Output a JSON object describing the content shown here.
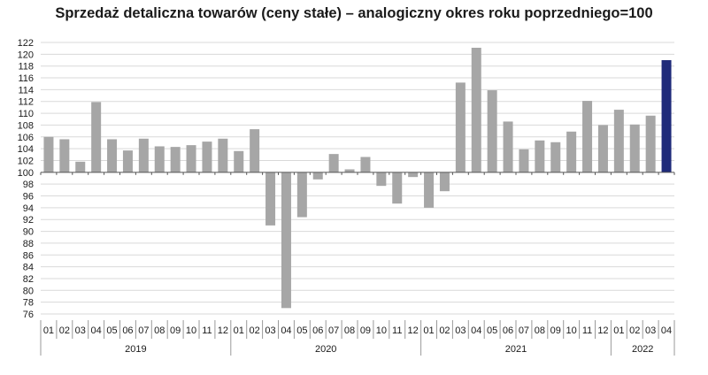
{
  "chart_data": {
    "type": "bar",
    "title": "Sprzedaż detaliczna towarów (ceny stałe) – analogiczny okres roku poprzedniego=100",
    "xlabel": "",
    "ylabel": "",
    "baseline": 100,
    "ylim": [
      76,
      122
    ],
    "yticks": [
      76,
      78,
      80,
      82,
      84,
      86,
      88,
      90,
      92,
      94,
      96,
      98,
      100,
      102,
      104,
      106,
      108,
      110,
      112,
      114,
      116,
      118,
      120,
      122
    ],
    "grid": true,
    "legend": "none",
    "colors": {
      "bar": "#a6a6a6",
      "highlight": "#1f2a7a",
      "grid": "#d9d9d9",
      "axis": "#555555"
    },
    "categories": [
      "01",
      "02",
      "03",
      "04",
      "05",
      "06",
      "07",
      "08",
      "09",
      "10",
      "11",
      "12",
      "01",
      "02",
      "03",
      "04",
      "05",
      "06",
      "07",
      "08",
      "09",
      "10",
      "11",
      "12",
      "01",
      "02",
      "03",
      "04",
      "05",
      "06",
      "07",
      "08",
      "09",
      "10",
      "11",
      "12",
      "01",
      "02",
      "03",
      "04"
    ],
    "values": [
      106.0,
      105.6,
      101.8,
      111.9,
      105.6,
      103.7,
      105.7,
      104.4,
      104.3,
      104.6,
      105.2,
      105.7,
      103.6,
      107.3,
      91.0,
      77.0,
      92.4,
      98.8,
      103.1,
      100.5,
      102.6,
      97.7,
      94.7,
      99.2,
      94.0,
      96.8,
      115.2,
      121.1,
      113.9,
      108.6,
      103.9,
      105.4,
      105.1,
      106.9,
      112.1,
      108.0,
      110.6,
      108.1,
      109.6,
      119.0
    ],
    "highlight_index": 39,
    "years": [
      {
        "label": "2019",
        "months": 12
      },
      {
        "label": "2020",
        "months": 12
      },
      {
        "label": "2021",
        "months": 12
      },
      {
        "label": "2022",
        "months": 4
      }
    ]
  }
}
